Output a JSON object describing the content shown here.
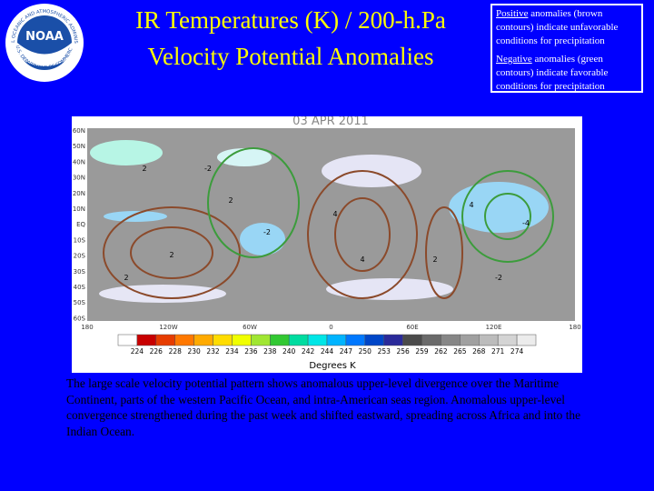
{
  "header": {
    "title_lines": [
      "IR Temperatures (K) / 200-h.Pa",
      "Velocity Potential Anomalies"
    ],
    "logo_text": "NOAA",
    "logo_ring_top": "NATIONAL OCEANIC AND ATMOSPHERIC ADMINISTRATION",
    "logo_ring_bottom": "U.S. DEPARTMENT OF COMMERCE"
  },
  "note": {
    "positive_word": "Positive",
    "positive_text": " anomalies (brown contours) indicate unfavorable conditions for precipitation",
    "negative_word": "Negative",
    "negative_text": " anomalies (green contours) indicate favorable conditions for precipitation"
  },
  "map": {
    "date": "03 APR 2011",
    "lat_labels": [
      "60N",
      "50N",
      "40N",
      "30N",
      "20N",
      "10N",
      "EQ",
      "10S",
      "20S",
      "30S",
      "40S",
      "50S",
      "60S"
    ],
    "lon_labels": [
      "180",
      "120W",
      "60W",
      "0",
      "60E",
      "120E",
      "180"
    ],
    "colorbar_labels": [
      "224",
      "226",
      "228",
      "230",
      "232",
      "234",
      "236",
      "238",
      "240",
      "242",
      "244",
      "247",
      "250",
      "253",
      "256",
      "259",
      "262",
      "265",
      "268",
      "271",
      "274"
    ],
    "colorbar_title": "Degrees K",
    "contour_labels": [
      "2",
      "2",
      "2",
      "2",
      "4",
      "4",
      "4",
      "-2",
      "-2",
      "-4",
      "-2",
      "2"
    ]
  },
  "body": {
    "text": "The large scale velocity potential pattern shows anomalous upper-level divergence over the Maritime Continent, parts of the western Pacific Ocean, and intra-American seas region. Anomalous upper-level convergence strengthened during the past week and shifted eastward, spreading across Africa and into the Indian Ocean."
  }
}
